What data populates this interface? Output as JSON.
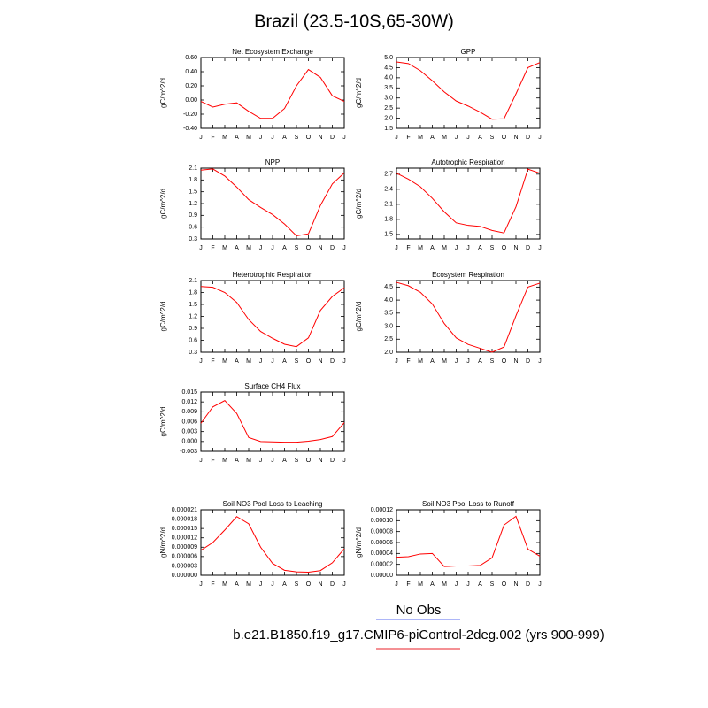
{
  "title": "Brazil (23.5-10S,65-30W)",
  "legend": [
    {
      "name": "No Obs",
      "color": "#5b6ef0"
    },
    {
      "name": "b.e21.B1850.f19_g17.CMIP6-piControl-2deg.002 (yrs 900-999)",
      "color": "#e8202a"
    }
  ],
  "chart_data": [
    {
      "type": "line",
      "title": "Net Ecosystem Exchange",
      "ylabel": "gC/m^2/d",
      "categories": [
        "J",
        "F",
        "M",
        "A",
        "M",
        "J",
        "J",
        "A",
        "S",
        "O",
        "N",
        "D",
        "J"
      ],
      "series": [
        {
          "color": "#ff0000",
          "values": [
            -0.02,
            -0.1,
            -0.06,
            -0.04,
            -0.16,
            -0.26,
            -0.26,
            -0.12,
            0.2,
            0.43,
            0.32,
            0.06,
            -0.02
          ]
        }
      ],
      "ylim": [
        -0.4,
        0.6
      ],
      "yticks": [
        {
          "value": -0.4,
          "label": "-0.40"
        },
        {
          "value": -0.2,
          "label": "-0.20"
        },
        {
          "value": 0,
          "label": "0.00"
        },
        {
          "value": 0.2,
          "label": "0.20"
        },
        {
          "value": 0.4,
          "label": "0.40"
        },
        {
          "value": 0.6,
          "label": "0.60"
        }
      ]
    },
    {
      "type": "line",
      "title": "GPP",
      "ylabel": "gC/m^2/d",
      "categories": [
        "J",
        "F",
        "M",
        "A",
        "M",
        "J",
        "J",
        "A",
        "S",
        "O",
        "N",
        "D",
        "J"
      ],
      "series": [
        {
          "color": "#ff0000",
          "values": [
            4.78,
            4.7,
            4.35,
            3.85,
            3.3,
            2.85,
            2.6,
            2.3,
            1.95,
            1.97,
            3.2,
            4.5,
            4.75
          ]
        }
      ],
      "ylim": [
        1.5,
        5.0
      ],
      "yticks": [
        1.5,
        {
          "value": 2,
          "label": "2.0"
        },
        2.5,
        {
          "value": 3,
          "label": "3.0"
        },
        3.5,
        {
          "value": 4,
          "label": "4.0"
        },
        4.5,
        {
          "value": 5,
          "label": "5.0"
        }
      ]
    },
    {
      "type": "line",
      "title": "NPP",
      "ylabel": "gC/m^2/d",
      "categories": [
        "J",
        "F",
        "M",
        "A",
        "M",
        "J",
        "J",
        "A",
        "S",
        "O",
        "N",
        "D",
        "J"
      ],
      "series": [
        {
          "color": "#ff0000",
          "values": [
            2.05,
            2.08,
            1.9,
            1.62,
            1.3,
            1.1,
            0.92,
            0.68,
            0.38,
            0.43,
            1.15,
            1.7,
            1.98
          ]
        }
      ],
      "ylim": [
        0.3,
        2.1
      ],
      "yticks": [
        0.3,
        0.6,
        0.9,
        1.2,
        1.5,
        1.8,
        2.1
      ]
    },
    {
      "type": "line",
      "title": "Autotrophic Respiration",
      "ylabel": "gC/m^2/d",
      "categories": [
        "J",
        "F",
        "M",
        "A",
        "M",
        "J",
        "J",
        "A",
        "S",
        "O",
        "N",
        "D",
        "J"
      ],
      "series": [
        {
          "color": "#ff0000",
          "values": [
            2.72,
            2.6,
            2.45,
            2.22,
            1.95,
            1.73,
            1.68,
            1.66,
            1.58,
            1.53,
            2.05,
            2.8,
            2.72
          ]
        }
      ],
      "ylim": [
        1.41,
        2.82
      ],
      "yticks": [
        1.5,
        1.8,
        2.1,
        2.4,
        2.7
      ]
    },
    {
      "type": "line",
      "title": "Heterotrophic Respiration",
      "ylabel": "gC/m^2/d",
      "categories": [
        "J",
        "F",
        "M",
        "A",
        "M",
        "J",
        "J",
        "A",
        "S",
        "O",
        "N",
        "D",
        "J"
      ],
      "series": [
        {
          "color": "#ff0000",
          "values": [
            1.95,
            1.93,
            1.8,
            1.55,
            1.12,
            0.82,
            0.65,
            0.5,
            0.44,
            0.66,
            1.35,
            1.7,
            1.92
          ]
        }
      ],
      "ylim": [
        0.3,
        2.1
      ],
      "yticks": [
        0.3,
        0.6,
        0.9,
        1.2,
        1.5,
        1.8,
        2.1
      ]
    },
    {
      "type": "line",
      "title": "Ecosystem Respiration",
      "ylabel": "gC/m^2/d",
      "categories": [
        "J",
        "F",
        "M",
        "A",
        "M",
        "J",
        "J",
        "A",
        "S",
        "O",
        "N",
        "D",
        "J"
      ],
      "series": [
        {
          "color": "#ff0000",
          "values": [
            4.68,
            4.55,
            4.3,
            3.85,
            3.1,
            2.55,
            2.3,
            2.15,
            2.0,
            2.2,
            3.4,
            4.5,
            4.65
          ]
        }
      ],
      "ylim": [
        2.0,
        4.75
      ],
      "yticks": [
        {
          "value": 2,
          "label": "2.0"
        },
        2.5,
        {
          "value": 3,
          "label": "3.0"
        },
        3.5,
        {
          "value": 4,
          "label": "4.0"
        },
        4.5
      ]
    },
    {
      "type": "line",
      "title": "Surface CH4 Flux",
      "ylabel": "gC/m^2/d",
      "categories": [
        "J",
        "F",
        "M",
        "A",
        "M",
        "J",
        "J",
        "A",
        "S",
        "O",
        "N",
        "D",
        "J"
      ],
      "series": [
        {
          "color": "#ff0000",
          "values": [
            0.0055,
            0.0105,
            0.0124,
            0.0085,
            0.0012,
            0.0,
            -0.0001,
            -0.0002,
            -0.0002,
            0.0001,
            0.0006,
            0.0015,
            0.0057
          ]
        }
      ],
      "ylim": [
        -0.003,
        0.015
      ],
      "yticks": [
        -0.003,
        {
          "value": 0,
          "label": "0.000"
        },
        0.003,
        0.006,
        0.009,
        0.012,
        0.015
      ]
    },
    {
      "type": "line",
      "title": "Soil NO3 Pool Loss to Leaching",
      "ylabel": "gN/m^2/d",
      "categories": [
        "J",
        "F",
        "M",
        "A",
        "M",
        "J",
        "J",
        "A",
        "S",
        "O",
        "N",
        "D",
        "J"
      ],
      "series": [
        {
          "color": "#ff0000",
          "values": [
            8e-06,
            1.05e-05,
            1.45e-05,
            1.88e-05,
            1.65e-05,
            9e-06,
            3.8e-06,
            1.6e-06,
            1.1e-06,
            1e-06,
            1.5e-06,
            4e-06,
            8.5e-06
          ]
        }
      ],
      "ylim": [
        0,
        2.1e-05
      ],
      "yticks": [
        {
          "value": 0,
          "label": "0.000000"
        },
        {
          "value": 3e-06,
          "label": "0.000003"
        },
        {
          "value": 6e-06,
          "label": "0.000006"
        },
        {
          "value": 9e-06,
          "label": "0.000009"
        },
        {
          "value": 1.2e-05,
          "label": "0.000012"
        },
        {
          "value": 1.5e-05,
          "label": "0.000015"
        },
        {
          "value": 1.8e-05,
          "label": "0.000018"
        },
        {
          "value": 2.1e-05,
          "label": "0.000021"
        }
      ]
    },
    {
      "type": "line",
      "title": "Soil NO3 Pool Loss to Runoff",
      "ylabel": "gN/m^2/d",
      "categories": [
        "J",
        "F",
        "M",
        "A",
        "M",
        "J",
        "J",
        "A",
        "S",
        "O",
        "N",
        "D",
        "J"
      ],
      "series": [
        {
          "color": "#ff0000",
          "values": [
            3.3e-05,
            3.4e-05,
            3.9e-05,
            4e-05,
            1.6e-05,
            1.7e-05,
            1.7e-05,
            1.8e-05,
            3.2e-05,
            9.2e-05,
            0.000108,
            4.8e-05,
            3.5e-05
          ]
        }
      ],
      "ylim": [
        0,
        0.00012
      ],
      "yticks": [
        {
          "value": 0,
          "label": "0.00000"
        },
        {
          "value": 2e-05,
          "label": "0.00002"
        },
        {
          "value": 4e-05,
          "label": "0.00004"
        },
        {
          "value": 6e-05,
          "label": "0.00006"
        },
        {
          "value": 8e-05,
          "label": "0.00008"
        },
        {
          "value": 0.0001,
          "label": "0.00010"
        },
        {
          "value": 0.00012,
          "label": "0.00012"
        }
      ]
    }
  ]
}
